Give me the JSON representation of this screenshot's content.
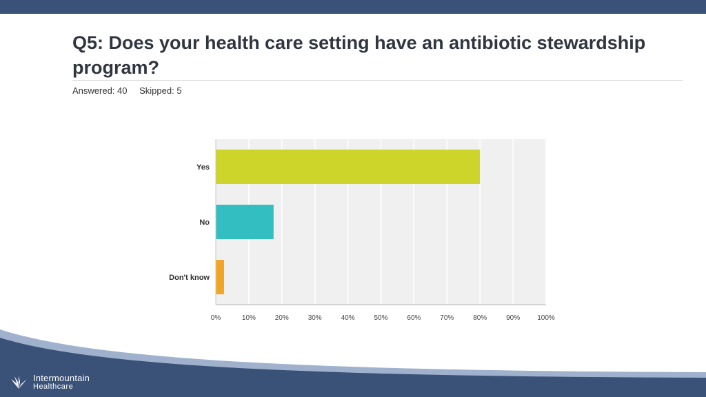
{
  "slide": {
    "title": "Q5: Does your health care setting have an antibiotic stewardship program?",
    "answered": "Answered: 40",
    "skipped": "Skipped: 5"
  },
  "brand": {
    "name_line1": "Intermountain",
    "name_line2": "Healthcare",
    "primary_color": "#3b5278",
    "accent_color": "#9fb1cc"
  },
  "chart_data": {
    "type": "bar",
    "orientation": "horizontal",
    "categories": [
      "Yes",
      "No",
      "Don't know"
    ],
    "values": [
      80,
      17.5,
      2.5
    ],
    "colors": [
      "#cdd42a",
      "#33bfc1",
      "#f3a623"
    ],
    "xlim": [
      0,
      100
    ],
    "x_ticks": [
      "0%",
      "10%",
      "20%",
      "30%",
      "40%",
      "50%",
      "60%",
      "70%",
      "80%",
      "90%",
      "100%"
    ],
    "grid": true,
    "title": "",
    "xlabel": "",
    "ylabel": ""
  }
}
